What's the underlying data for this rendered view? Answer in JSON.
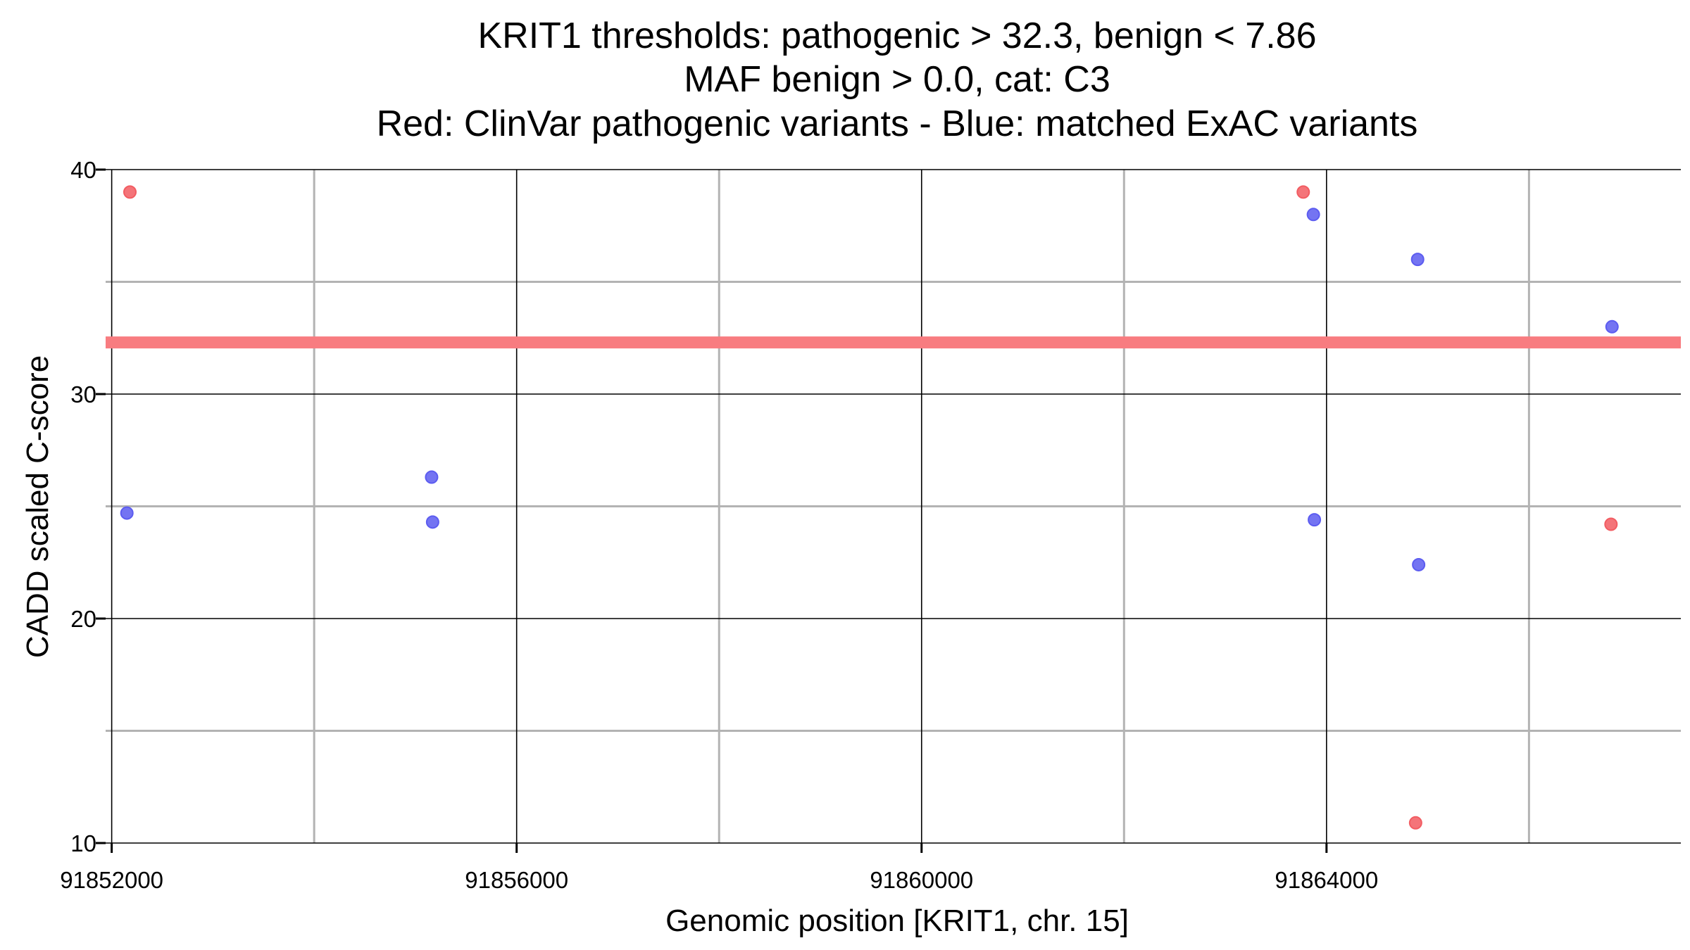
{
  "chart_data": {
    "type": "scatter",
    "title_lines": [
      "KRIT1 thresholds: pathogenic > 32.3, benign < 7.86",
      "MAF benign > 0.0, cat: C3",
      "Red: ClinVar pathogenic variants - Blue: matched ExAC variants"
    ],
    "xlabel": "Genomic position [KRIT1, chr. 15]",
    "ylabel": "CADD scaled C-score",
    "xlim": [
      91851940,
      91867500
    ],
    "ylim": [
      10,
      40
    ],
    "x_major_ticks": [
      91852000,
      91856000,
      91860000,
      91864000
    ],
    "x_tick_labels": [
      "91852000",
      "91856000",
      "91860000",
      "91864000"
    ],
    "x_minor_ticks": [
      91854000,
      91858000,
      91862000,
      91866000
    ],
    "y_major_ticks": [
      10,
      20,
      30,
      40
    ],
    "y_tick_labels": [
      "10",
      "20",
      "30",
      "40"
    ],
    "y_minor_ticks": [
      15,
      25,
      35
    ],
    "threshold_line": {
      "y": 32.3,
      "label": "pathogenic threshold",
      "color": "#f87c80"
    },
    "series": [
      {
        "name": "ClinVar pathogenic variants",
        "color": "#f25c62",
        "x": [
          91852180,
          91863770,
          91864880,
          91866810
        ],
        "y": [
          39.0,
          39.0,
          10.9,
          24.2
        ]
      },
      {
        "name": "matched ExAC variants",
        "color": "#5c5cf0",
        "x": [
          91852150,
          91855160,
          91855170,
          91863870,
          91863880,
          91864900,
          91864910,
          91866820
        ],
        "y": [
          24.7,
          26.3,
          24.3,
          38.0,
          24.4,
          36.0,
          22.4,
          33.0
        ]
      }
    ]
  }
}
